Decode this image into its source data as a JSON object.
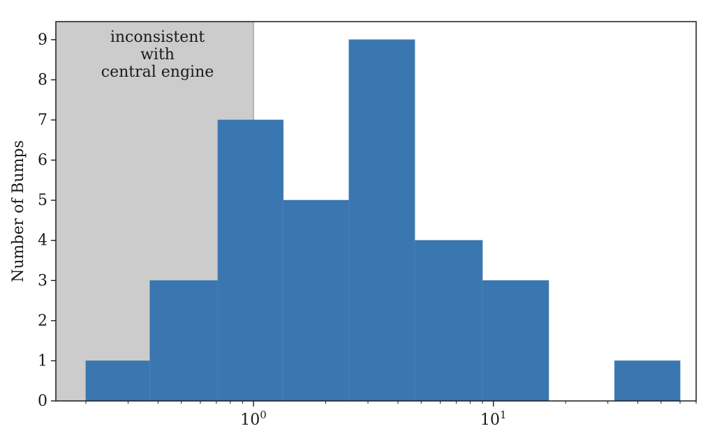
{
  "chart_data": {
    "type": "bar",
    "title": "",
    "xlabel": "",
    "ylabel": "Number of Bumps",
    "x_scale": "log",
    "xlim": [
      0.15,
      70
    ],
    "ylim": [
      0,
      9.45
    ],
    "yticks": [
      0,
      1,
      2,
      3,
      4,
      5,
      6,
      7,
      8,
      9
    ],
    "xticks_major": [
      {
        "value": 1,
        "base": "10",
        "exponent": "0"
      },
      {
        "value": 10,
        "base": "10",
        "exponent": "1"
      }
    ],
    "bin_edges": [
      0.2,
      0.37,
      0.71,
      1.33,
      2.5,
      4.7,
      9.0,
      17.0,
      32.0,
      60.0
    ],
    "values": [
      1,
      3,
      7,
      5,
      9,
      4,
      3,
      0,
      1
    ],
    "bar_color": "#3a76af",
    "shaded_region": {
      "x_from": 0.15,
      "x_to": 1,
      "color": "#cccccc",
      "label_lines": [
        "inconsistent",
        "with",
        "central engine"
      ]
    },
    "grid": false,
    "legend": "none"
  }
}
